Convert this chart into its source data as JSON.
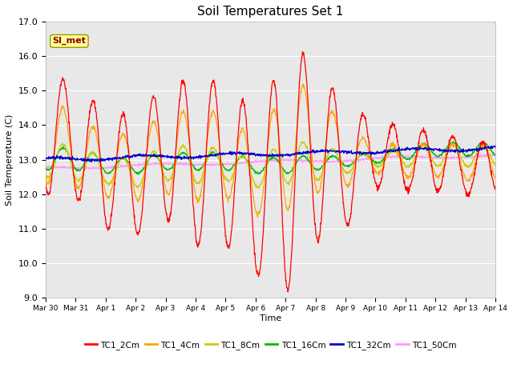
{
  "title": "Soil Temperatures Set 1",
  "xlabel": "Time",
  "ylabel": "Soil Temperature (C)",
  "ylim": [
    9.0,
    17.0
  ],
  "yticks": [
    9.0,
    10.0,
    11.0,
    12.0,
    13.0,
    14.0,
    15.0,
    16.0,
    17.0
  ],
  "xtick_labels": [
    "Mar 30",
    "Mar 31",
    "Apr 1",
    "Apr 2",
    "Apr 3",
    "Apr 4",
    "Apr 5",
    "Apr 6",
    "Apr 7",
    "Apr 8",
    "Apr 9",
    "Apr 10",
    "Apr 11",
    "Apr 12",
    "Apr 13",
    "Apr 14"
  ],
  "annotation_text": "SI_met",
  "annotation_color": "#8B0000",
  "annotation_bg": "#FFFF99",
  "series_colors": [
    "#FF0000",
    "#FFA500",
    "#CCCC00",
    "#00BB00",
    "#0000CC",
    "#FF99FF"
  ],
  "series_labels": [
    "TC1_2Cm",
    "TC1_4Cm",
    "TC1_8Cm",
    "TC1_16Cm",
    "TC1_32Cm",
    "TC1_50Cm"
  ],
  "bg_color": "#E8E8E8",
  "grid_color": "#FFFFFF",
  "fig_bg": "#FFFFFF"
}
